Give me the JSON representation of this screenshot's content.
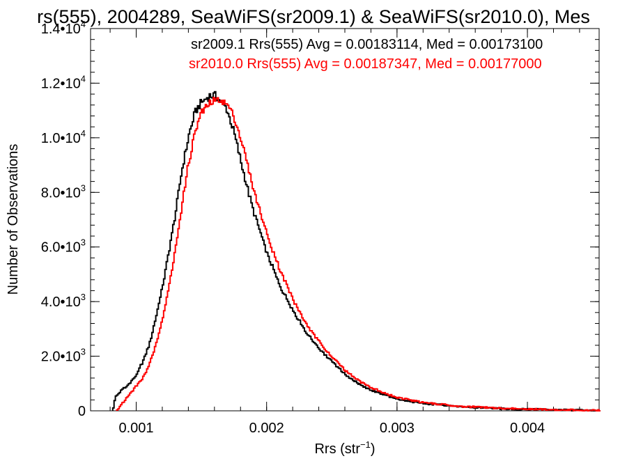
{
  "chart_data": {
    "type": "histogram-step",
    "title": "rs(555), 2004289, SeaWiFS(sr2009.1) & SeaWiFS(sr2010.0), Mes",
    "xlabel_main": "Rrs (str",
    "xlabel_sup": "−1",
    "xlabel_tail": ")",
    "ylabel": "Number of Observations",
    "xlim": [
      0.00065,
      0.00455
    ],
    "ylim": [
      0,
      14000
    ],
    "x_ticks": [
      {
        "value": 0.001,
        "label": "0.001"
      },
      {
        "value": 0.002,
        "label": "0.002"
      },
      {
        "value": 0.003,
        "label": "0.003"
      },
      {
        "value": 0.004,
        "label": "0.004"
      }
    ],
    "x_minor_step": 0.0002,
    "y_ticks": [
      {
        "value": 0,
        "mant": "0",
        "exp": ""
      },
      {
        "value": 2000,
        "mant": "2.0•10",
        "exp": "3"
      },
      {
        "value": 4000,
        "mant": "4.0•10",
        "exp": "3"
      },
      {
        "value": 6000,
        "mant": "6.0•10",
        "exp": "3"
      },
      {
        "value": 8000,
        "mant": "8.0•10",
        "exp": "3"
      },
      {
        "value": 10000,
        "mant": "1.0•10",
        "exp": "4"
      },
      {
        "value": 12000,
        "mant": "1.2•10",
        "exp": "4"
      },
      {
        "value": 14000,
        "mant": "1.4•10",
        "exp": "4"
      }
    ],
    "y_minor_step": 400,
    "series": [
      {
        "name": "sr2009.1 Rrs(555) Avg = 0.00183114, Med = 0.00173100",
        "color": "#000000",
        "start": 0.00082,
        "end": 0.00455,
        "profile": [
          [
            0.00082,
            0
          ],
          [
            0.00084,
            500
          ],
          [
            0.0009,
            800
          ],
          [
            0.00095,
            1000
          ],
          [
            0.001,
            1300
          ],
          [
            0.00105,
            1800
          ],
          [
            0.0011,
            2400
          ],
          [
            0.00115,
            3400
          ],
          [
            0.0012,
            4500
          ],
          [
            0.00125,
            5800
          ],
          [
            0.0013,
            7200
          ],
          [
            0.00135,
            8800
          ],
          [
            0.0014,
            10000
          ],
          [
            0.00145,
            10900
          ],
          [
            0.0015,
            11300
          ],
          [
            0.00155,
            11500
          ],
          [
            0.0016,
            11550
          ],
          [
            0.00165,
            11350
          ],
          [
            0.0017,
            11000
          ],
          [
            0.00175,
            10200
          ],
          [
            0.0018,
            9200
          ],
          [
            0.00185,
            8200
          ],
          [
            0.0019,
            7300
          ],
          [
            0.00195,
            6600
          ],
          [
            0.002,
            5800
          ],
          [
            0.0021,
            4600
          ],
          [
            0.0022,
            3700
          ],
          [
            0.0023,
            2900
          ],
          [
            0.0024,
            2300
          ],
          [
            0.0025,
            1800
          ],
          [
            0.0026,
            1350
          ],
          [
            0.0027,
            1000
          ],
          [
            0.0028,
            750
          ],
          [
            0.003,
            430
          ],
          [
            0.0032,
            270
          ],
          [
            0.0035,
            150
          ],
          [
            0.0038,
            80
          ],
          [
            0.0042,
            40
          ],
          [
            0.00455,
            10
          ]
        ]
      },
      {
        "name": "sr2010.0 Rrs(555) Avg = 0.00187347, Med = 0.00177000",
        "color": "#ff0000",
        "start": 0.00085,
        "end": 0.00455,
        "profile": [
          [
            0.00085,
            0
          ],
          [
            0.00088,
            200
          ],
          [
            0.00095,
            600
          ],
          [
            0.001,
            900
          ],
          [
            0.00105,
            1200
          ],
          [
            0.0011,
            1700
          ],
          [
            0.00115,
            2400
          ],
          [
            0.0012,
            3300
          ],
          [
            0.00125,
            4500
          ],
          [
            0.0013,
            5900
          ],
          [
            0.00135,
            7500
          ],
          [
            0.0014,
            9000
          ],
          [
            0.00145,
            10200
          ],
          [
            0.0015,
            10900
          ],
          [
            0.00155,
            11200
          ],
          [
            0.0016,
            11350
          ],
          [
            0.00165,
            11400
          ],
          [
            0.0017,
            11200
          ],
          [
            0.00175,
            10800
          ],
          [
            0.0018,
            10000
          ],
          [
            0.00185,
            9100
          ],
          [
            0.0019,
            8100
          ],
          [
            0.00195,
            7300
          ],
          [
            0.002,
            6500
          ],
          [
            0.0021,
            5200
          ],
          [
            0.0022,
            4100
          ],
          [
            0.0023,
            3200
          ],
          [
            0.0024,
            2550
          ],
          [
            0.0025,
            2000
          ],
          [
            0.0026,
            1500
          ],
          [
            0.0027,
            1120
          ],
          [
            0.0028,
            850
          ],
          [
            0.003,
            490
          ],
          [
            0.0032,
            300
          ],
          [
            0.0035,
            165
          ],
          [
            0.0038,
            90
          ],
          [
            0.0042,
            45
          ],
          [
            0.00455,
            12
          ]
        ]
      }
    ]
  }
}
